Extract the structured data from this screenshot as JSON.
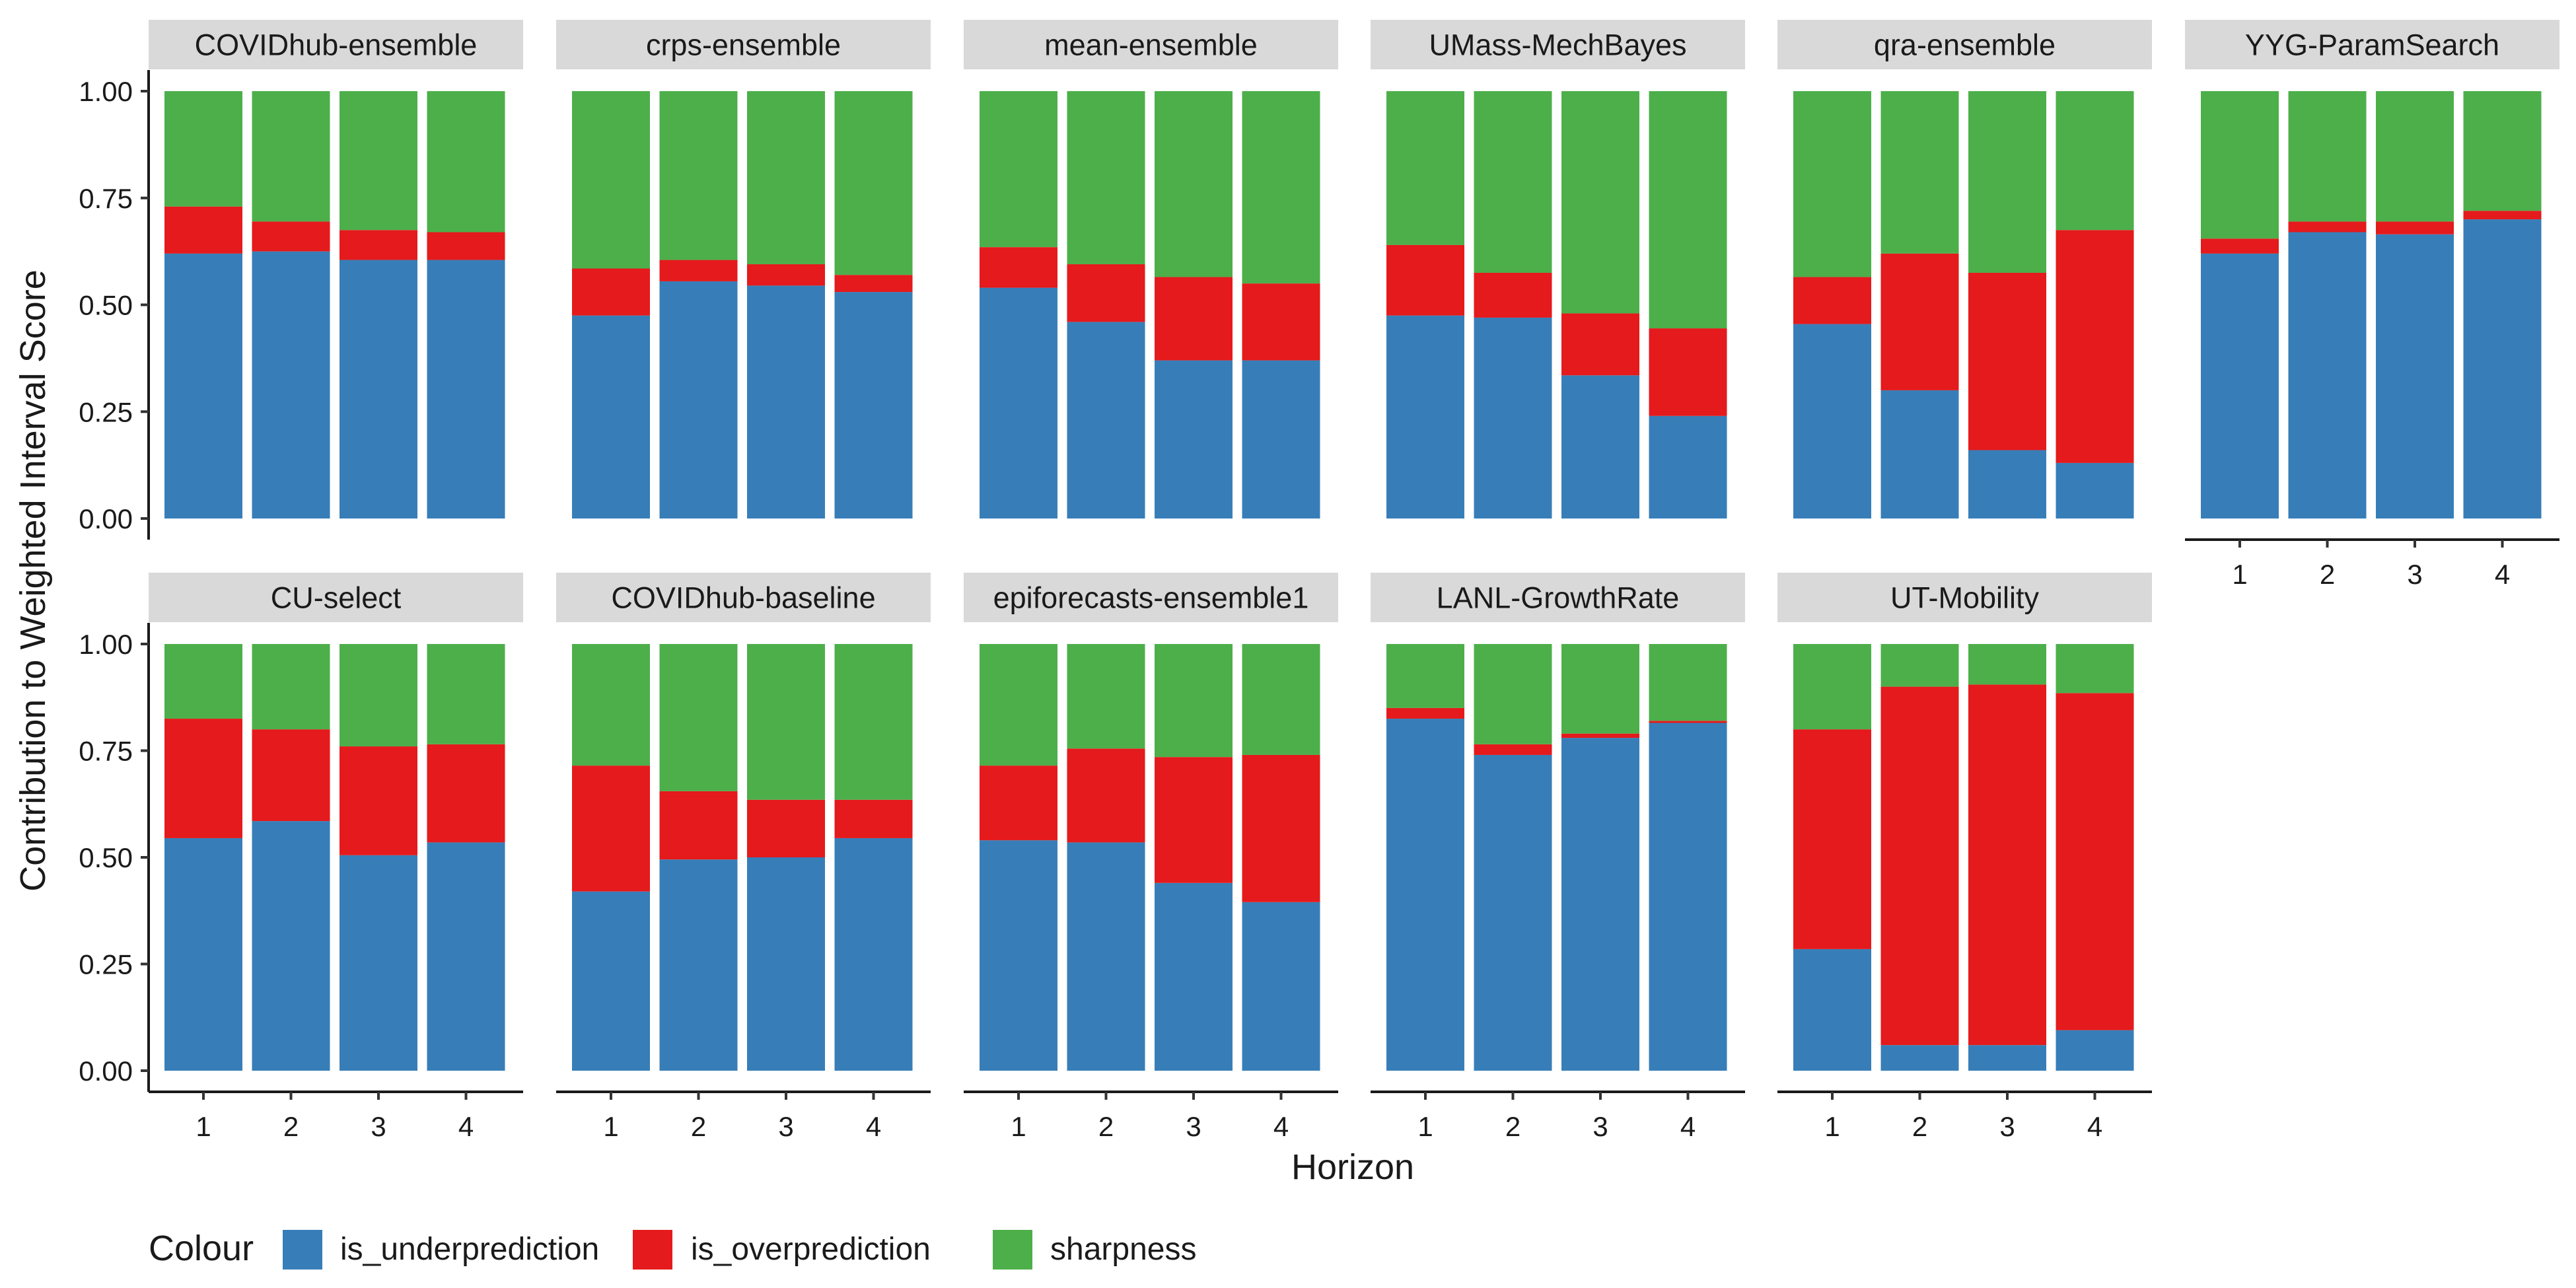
{
  "chart_data": {
    "type": "bar",
    "stacked": true,
    "faceted": true,
    "xlabel": "Horizon",
    "ylabel": "Contribution to Weighted Interval Score",
    "ylim": [
      0,
      1
    ],
    "y_ticks": [
      "0.00",
      "0.25",
      "0.50",
      "0.75",
      "1.00"
    ],
    "x_ticks": [
      "1",
      "2",
      "3",
      "4"
    ],
    "legend": {
      "title": "Colour",
      "position": "bottom",
      "entries": [
        {
          "key": "is_underprediction",
          "label": "is_underprediction",
          "color": "#377EB8"
        },
        {
          "key": "is_overprediction",
          "label": "is_overprediction",
          "color": "#E41A1C"
        },
        {
          "key": "sharpness",
          "label": "sharpness",
          "color": "#4DAF4A"
        }
      ]
    },
    "panels": [
      {
        "title": "COVIDhub-ensemble",
        "underprediction": [
          0.62,
          0.625,
          0.605,
          0.605
        ],
        "overprediction": [
          0.11,
          0.07,
          0.07,
          0.065
        ]
      },
      {
        "title": "crps-ensemble",
        "underprediction": [
          0.475,
          0.555,
          0.545,
          0.53
        ],
        "overprediction": [
          0.11,
          0.05,
          0.05,
          0.04
        ]
      },
      {
        "title": "mean-ensemble",
        "underprediction": [
          0.54,
          0.46,
          0.37,
          0.37
        ],
        "overprediction": [
          0.095,
          0.135,
          0.195,
          0.18
        ]
      },
      {
        "title": "UMass-MechBayes",
        "underprediction": [
          0.475,
          0.47,
          0.335,
          0.24
        ],
        "overprediction": [
          0.165,
          0.105,
          0.145,
          0.205
        ]
      },
      {
        "title": "qra-ensemble",
        "underprediction": [
          0.455,
          0.3,
          0.16,
          0.13
        ],
        "overprediction": [
          0.11,
          0.32,
          0.415,
          0.545
        ]
      },
      {
        "title": "YYG-ParamSearch",
        "underprediction": [
          0.62,
          0.67,
          0.665,
          0.7
        ],
        "overprediction": [
          0.035,
          0.025,
          0.03,
          0.02
        ]
      },
      {
        "title": "CU-select",
        "underprediction": [
          0.545,
          0.585,
          0.505,
          0.535
        ],
        "overprediction": [
          0.28,
          0.215,
          0.255,
          0.23
        ]
      },
      {
        "title": "COVIDhub-baseline",
        "underprediction": [
          0.42,
          0.495,
          0.5,
          0.545
        ],
        "overprediction": [
          0.295,
          0.16,
          0.135,
          0.09
        ]
      },
      {
        "title": "epiforecasts-ensemble1",
        "underprediction": [
          0.54,
          0.535,
          0.44,
          0.395
        ],
        "overprediction": [
          0.175,
          0.22,
          0.295,
          0.345
        ]
      },
      {
        "title": "LANL-GrowthRate",
        "underprediction": [
          0.825,
          0.74,
          0.78,
          0.815
        ],
        "overprediction": [
          0.025,
          0.025,
          0.01,
          0.005
        ]
      },
      {
        "title": "UT-Mobility",
        "underprediction": [
          0.285,
          0.06,
          0.06,
          0.095
        ],
        "overprediction": [
          0.515,
          0.84,
          0.845,
          0.79
        ]
      }
    ]
  }
}
